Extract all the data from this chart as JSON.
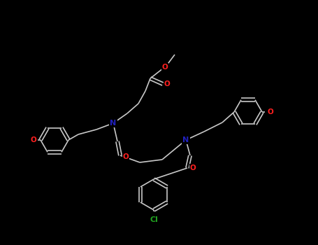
{
  "background_color": "#000000",
  "bond_color": "#c8c8c8",
  "bond_width": 1.2,
  "atom_colors": {
    "O": "#ff2020",
    "N": "#2020bb",
    "Cl": "#20a020",
    "C": "#c8c8c8"
  },
  "figsize": [
    4.55,
    3.5
  ],
  "dpi": 100,
  "scale": 1.0
}
